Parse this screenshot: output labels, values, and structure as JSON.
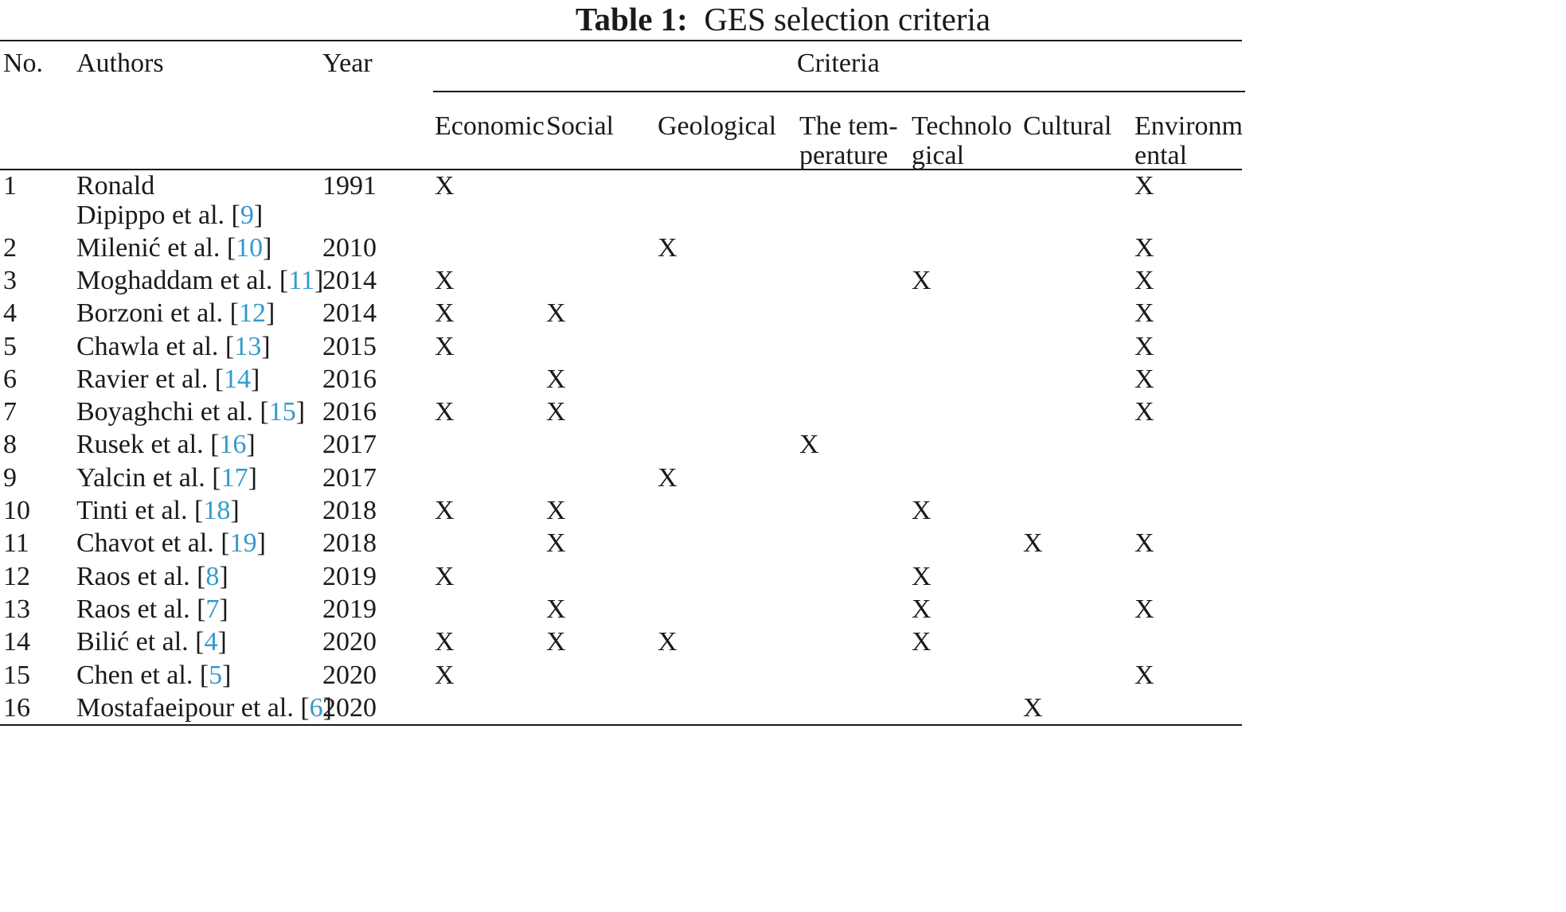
{
  "table": {
    "caption_label": "Table 1:",
    "caption_text": "GES selection criteria",
    "headers": {
      "no": "No.",
      "authors": "Authors",
      "year": "Year",
      "criteria": "Criteria",
      "criteria_cols": [
        [
          "Economic"
        ],
        [
          "Social"
        ],
        [
          "Geological"
        ],
        [
          "The tem-",
          "perature"
        ],
        [
          "Technolo",
          "gical"
        ],
        [
          "Cultural"
        ],
        [
          "Environm",
          "ental"
        ]
      ]
    },
    "mark_symbol": "X",
    "rows": [
      {
        "no": "1",
        "author_lines": [
          "Ronald",
          "Dipippo et al. ["
        ],
        "ref": "9",
        "ref_close": "]",
        "year": "1991",
        "marks": [
          1,
          0,
          0,
          0,
          0,
          0,
          1
        ]
      },
      {
        "no": "2",
        "author_lines": [
          "Milenić et al. ["
        ],
        "ref": "10",
        "ref_close": "]",
        "year": "2010",
        "marks": [
          0,
          0,
          1,
          0,
          0,
          0,
          1
        ]
      },
      {
        "no": "3",
        "author_lines": [
          "Moghaddam et al. ["
        ],
        "ref": "11",
        "ref_close": "]",
        "year": "2014",
        "marks": [
          1,
          0,
          0,
          0,
          1,
          0,
          1
        ]
      },
      {
        "no": "4",
        "author_lines": [
          "Borzoni et al. ["
        ],
        "ref": "12",
        "ref_close": "]",
        "year": "2014",
        "marks": [
          1,
          1,
          0,
          0,
          0,
          0,
          1
        ]
      },
      {
        "no": "5",
        "author_lines": [
          "Chawla et al. ["
        ],
        "ref": "13",
        "ref_close": "]",
        "year": "2015",
        "marks": [
          1,
          0,
          0,
          0,
          0,
          0,
          1
        ]
      },
      {
        "no": "6",
        "author_lines": [
          "Ravier et al. ["
        ],
        "ref": "14",
        "ref_close": "]",
        "year": "2016",
        "marks": [
          0,
          1,
          0,
          0,
          0,
          0,
          1
        ]
      },
      {
        "no": "7",
        "author_lines": [
          "Boyaghchi et al. ["
        ],
        "ref": "15",
        "ref_close": "]",
        "year": "2016",
        "marks": [
          1,
          1,
          0,
          0,
          0,
          0,
          1
        ]
      },
      {
        "no": "8",
        "author_lines": [
          "Rusek et al. ["
        ],
        "ref": "16",
        "ref_close": "]",
        "year": "2017",
        "marks": [
          0,
          0,
          0,
          1,
          0,
          0,
          0
        ]
      },
      {
        "no": "9",
        "author_lines": [
          "Yalcin et al. ["
        ],
        "ref": "17",
        "ref_close": "]",
        "year": "2017",
        "marks": [
          0,
          0,
          1,
          0,
          0,
          0,
          0
        ]
      },
      {
        "no": "10",
        "author_lines": [
          "Tinti et al. ["
        ],
        "ref": "18",
        "ref_close": "]",
        "year": "2018",
        "marks": [
          1,
          1,
          0,
          0,
          1,
          0,
          0
        ]
      },
      {
        "no": "11",
        "author_lines": [
          "Chavot et al. ["
        ],
        "ref": "19",
        "ref_close": "]",
        "year": "2018",
        "marks": [
          0,
          1,
          0,
          0,
          0,
          1,
          1
        ]
      },
      {
        "no": "12",
        "author_lines": [
          "Raos et al. ["
        ],
        "ref": "8",
        "ref_close": "]",
        "year": "2019",
        "marks": [
          1,
          0,
          0,
          0,
          1,
          0,
          0
        ]
      },
      {
        "no": "13",
        "author_lines": [
          "Raos et al. ["
        ],
        "ref": "7",
        "ref_close": "]",
        "year": "2019",
        "marks": [
          0,
          1,
          0,
          0,
          1,
          0,
          1
        ]
      },
      {
        "no": "14",
        "author_lines": [
          "Bilić et al. ["
        ],
        "ref": "4",
        "ref_close": "]",
        "year": "2020",
        "marks": [
          1,
          1,
          1,
          0,
          1,
          0,
          0
        ]
      },
      {
        "no": "15",
        "author_lines": [
          "Chen et al. ["
        ],
        "ref": "5",
        "ref_close": "]",
        "year": "2020",
        "marks": [
          1,
          0,
          0,
          0,
          0,
          0,
          1
        ]
      },
      {
        "no": "16",
        "author_lines": [
          "Mostafaeipour et al. ["
        ],
        "ref": "6",
        "ref_close": "]",
        "year": "2020",
        "marks": [
          0,
          0,
          0,
          0,
          0,
          1,
          0
        ]
      }
    ]
  }
}
